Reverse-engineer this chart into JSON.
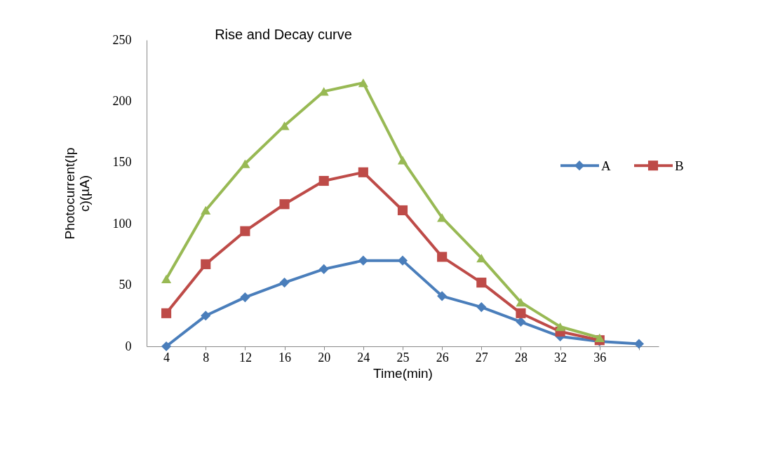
{
  "chart_data": {
    "type": "line",
    "title": "Rise and Decay curve",
    "xlabel": "Time(min)",
    "ylabel": "Photocurrent(Ip c)(µA)",
    "categories": [
      "4",
      "8",
      "12",
      "16",
      "20",
      "24",
      "25",
      "26",
      "27",
      "28",
      "32",
      "36",
      null
    ],
    "ylim": [
      0,
      250
    ],
    "yticks": [
      0,
      50,
      100,
      150,
      200,
      250
    ],
    "grid": false,
    "legend": "right",
    "series": [
      {
        "name": "A",
        "color": "#4a7ebb",
        "marker": "diamond",
        "values": [
          0,
          25,
          40,
          52,
          63,
          70,
          70,
          41,
          32,
          20,
          8,
          4,
          2
        ]
      },
      {
        "name": "B",
        "color": "#be4b48",
        "marker": "square",
        "values": [
          27,
          67,
          94,
          116,
          135,
          142,
          111,
          73,
          52,
          27,
          12,
          5,
          null
        ]
      },
      {
        "color": "#98b954",
        "marker": "triangle",
        "values": [
          55,
          111,
          149,
          180,
          208,
          215,
          152,
          105,
          72,
          36,
          16,
          7,
          null
        ]
      }
    ]
  }
}
